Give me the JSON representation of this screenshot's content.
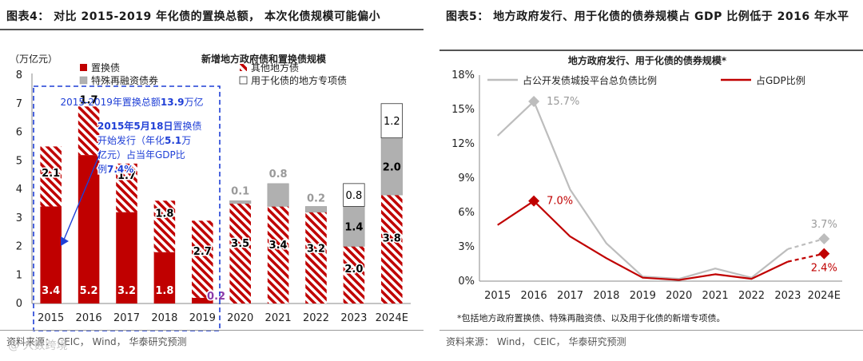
{
  "left": {
    "figure_title": "图表4： 对比 2015-2019 年化债的置换总额， 本次化债规模可能偏小",
    "source": "资料来源： CEIC， Wind， 华泰研究预测"
  },
  "right": {
    "figure_title": "图表5： 地方政府发行、用于化债的债券规模占 GDP 比例低于 2016 年水平",
    "footnote": "*包括地方政府置换债、特殊再融资债、以及用于化债的新增专项债。",
    "source": "资料来源： Wind， CEIC， 华泰研究预测"
  },
  "watermark": "@ 大数跨境",
  "colors": {
    "red": "#c00000",
    "gray": "#b0b0b0",
    "hatch": "#c00000",
    "annotation_blue": "#1f3fd6",
    "line_gray": "#bdbdbd"
  },
  "chart_data": [
    {
      "type": "bar",
      "stacked": true,
      "title": "新增地方政府债和置换债规模",
      "ylabel": "（万亿元）",
      "ylim": [
        0,
        8
      ],
      "yticks": [
        0,
        1,
        2,
        3,
        4,
        5,
        6,
        7,
        8
      ],
      "categories": [
        "2015",
        "2016",
        "2017",
        "2018",
        "2019",
        "2020",
        "2021",
        "2022",
        "2023",
        "2024E"
      ],
      "series": [
        {
          "name": "置换债",
          "style": "solid-red",
          "values": [
            3.4,
            5.2,
            3.2,
            1.8,
            0.2,
            0,
            0,
            0,
            0,
            0
          ]
        },
        {
          "name": "其他地方债",
          "style": "hatch",
          "values": [
            2.1,
            1.7,
            1.7,
            1.8,
            2.7,
            3.5,
            3.4,
            3.2,
            2.0,
            3.8
          ]
        },
        {
          "name": "特殊再融资债券",
          "style": "gray",
          "values": [
            0,
            0,
            0,
            0,
            0,
            0.1,
            0.8,
            0.2,
            1.4,
            2.0
          ]
        },
        {
          "name": "用于化债的地方专项债",
          "style": "white",
          "values": [
            0,
            0,
            0,
            0,
            0,
            0,
            0,
            0,
            0.8,
            1.2
          ]
        }
      ],
      "annotations": [
        {
          "text_parts": [
            "2015-2019年置换总额",
            "13.9",
            "万亿"
          ]
        },
        {
          "lines": [
            [
              {
                "t": "2015年5月18日",
                "b": true
              },
              {
                "t": "置换债",
                "b": false
              }
            ],
            [
              {
                "t": "开始发行（年化",
                "b": false
              },
              {
                "t": "5.1",
                "b": true
              },
              {
                "t": "万",
                "b": false
              }
            ],
            [
              {
                "t": "亿元）占当年GDP比",
                "b": false
              }
            ],
            [
              {
                "t": "例",
                "b": false
              },
              {
                "t": "7.4%",
                "b": true
              }
            ]
          ]
        }
      ]
    },
    {
      "type": "line",
      "title": "地方政府发行、用于化债的债券规模*",
      "ylim": [
        0,
        18
      ],
      "yticks": [
        "0%",
        "3%",
        "6%",
        "9%",
        "12%",
        "15%",
        "18%"
      ],
      "x": [
        "2015",
        "2016",
        "2017",
        "2018",
        "2019",
        "2020",
        "2021",
        "2022",
        "2023",
        "2024E"
      ],
      "series": [
        {
          "name": "占公开发债城投平台总负债比例",
          "color": "#bdbdbd",
          "values": [
            12.7,
            15.7,
            8.0,
            3.3,
            0.4,
            0.2,
            1.1,
            0.3,
            2.8,
            3.7
          ],
          "label": "15.7%",
          "label_index": 1,
          "end_label": "3.7%"
        },
        {
          "name": "占GDP比例",
          "color": "#c00000",
          "values": [
            4.9,
            7.0,
            3.9,
            2.0,
            0.3,
            0.1,
            0.6,
            0.2,
            1.7,
            2.4
          ],
          "label": "7.0%",
          "label_index": 1,
          "end_label": "2.4%"
        }
      ]
    }
  ]
}
